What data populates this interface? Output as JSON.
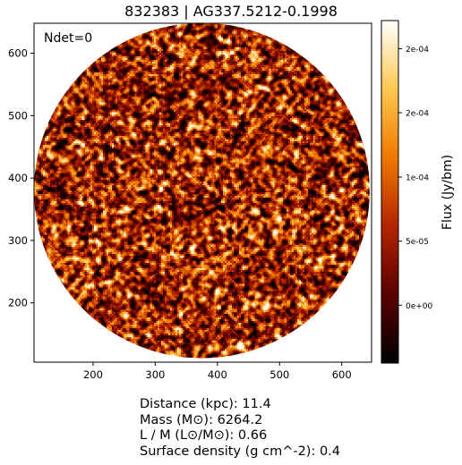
{
  "chart_data": {
    "type": "heatmap",
    "title": "832383 | AG337.5212-0.1998",
    "annotation": "Ndet=0",
    "x_ticks": [
      "200",
      "300",
      "400",
      "500",
      "600"
    ],
    "y_ticks": [
      "200",
      "300",
      "400",
      "500",
      "600"
    ],
    "xlim": [
      105,
      648
    ],
    "ylim": [
      105,
      648
    ],
    "x_tick_values": [
      200,
      300,
      400,
      500,
      600
    ],
    "y_tick_values": [
      200,
      300,
      400,
      500,
      600
    ],
    "circle": {
      "center_x": 375,
      "center_y": 380,
      "radius": 270
    },
    "colorbar": {
      "label": "Flux (Jy/bm)",
      "colormap": "afmhot",
      "ticks": [
        "0e+00",
        "5e-05",
        "1e-04",
        "2e-04",
        "2e-04"
      ],
      "tick_fractions": [
        0.169,
        0.356,
        0.543,
        0.731,
        0.918
      ]
    }
  },
  "info": {
    "distance": "Distance (kpc): 11.4",
    "mass": "Mass (M⊙): 6264.2",
    "lm": "L / M (L⊙/M⊙): 0.66",
    "surface_density": "Surface density (g cm^-2): 0.4"
  },
  "colors": {
    "cmap_stops": [
      "#000000",
      "#5a0000",
      "#b42400",
      "#f07800",
      "#ffc850",
      "#ffffff"
    ]
  }
}
